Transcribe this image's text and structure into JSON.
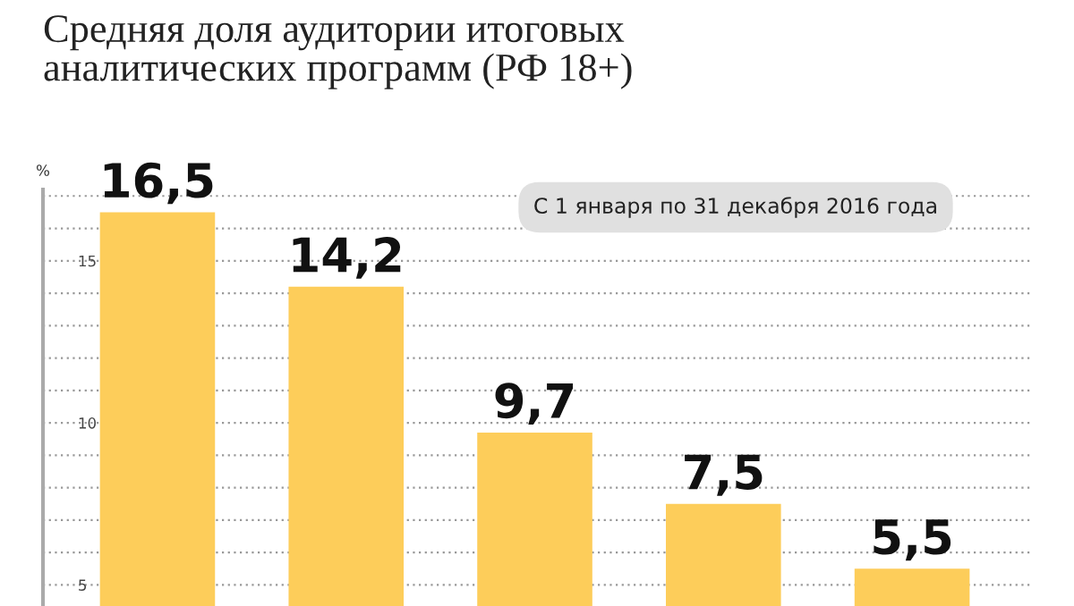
{
  "chart_data": {
    "type": "bar",
    "title": "Средняя доля аудитории итоговых\nаналитических программ (РФ 18+)",
    "ylabel": "%",
    "annotations": [
      "С 1 января по 31 декабря 2016 года"
    ],
    "categories": [
      null,
      null,
      null,
      null,
      null
    ],
    "values": [
      16.5,
      14.2,
      9.7,
      7.5,
      5.5
    ],
    "value_labels": [
      "16,5",
      "14,2",
      "9,7",
      "7,5",
      "5,5"
    ],
    "color": "#fdcd5a",
    "ylim": [
      4.35,
      17.2
    ],
    "yticks": [
      5,
      {
        "value": 6,
        "label": null
      },
      {
        "value": 7,
        "label": null
      },
      {
        "value": 8,
        "label": null
      },
      {
        "value": 9,
        "label": null
      },
      10,
      {
        "value": 11,
        "label": null
      },
      {
        "value": 12,
        "label": null
      },
      {
        "value": 13,
        "label": null
      },
      {
        "value": 14,
        "label": null
      },
      15,
      {
        "value": 16,
        "label": null
      },
      {
        "value": 17,
        "label": null
      }
    ],
    "grid": "y",
    "legend": false
  }
}
